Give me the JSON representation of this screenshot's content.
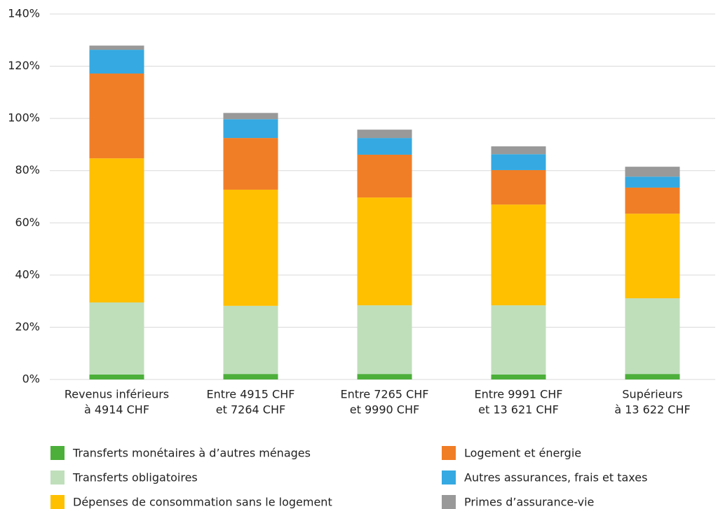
{
  "chart_data": {
    "type": "stacked_bar",
    "categories": [
      [
        "Revenus inférieurs",
        "à 4914 CHF"
      ],
      [
        "Entre 4915 CHF",
        "et 7264 CHF"
      ],
      [
        "Entre 7265 CHF",
        "et 9990 CHF"
      ],
      [
        "Entre 9991 CHF",
        "et 13 621 CHF"
      ],
      [
        "Supérieurs",
        "à 13 622 CHF"
      ]
    ],
    "series": [
      {
        "name": "Transferts monétaires à d’autres ménages",
        "color": "#4caf3a",
        "values": [
          1.9,
          2.1,
          2.1,
          1.9,
          2.1
        ]
      },
      {
        "name": "Transferts obligatoires",
        "color": "#bfdfbb",
        "values": [
          27.6,
          26.1,
          26.3,
          26.5,
          29.0
        ]
      },
      {
        "name": "Dépenses de consommation sans le logement",
        "color": "#ffc000",
        "values": [
          55.2,
          44.5,
          41.3,
          38.6,
          32.4
        ]
      },
      {
        "name": "Logement et énergie",
        "color": "#f07e26",
        "values": [
          32.5,
          19.8,
          16.4,
          13.2,
          10.0
        ]
      },
      {
        "name": "Autres assurances, frais et taxes",
        "color": "#35a9e1",
        "values": [
          9.1,
          7.2,
          6.4,
          6.1,
          4.2
        ]
      },
      {
        "name": "Primes d’assurance-vie",
        "color": "#999999",
        "values": [
          1.6,
          2.4,
          3.2,
          3.0,
          3.8
        ]
      }
    ],
    "ylim": [
      0,
      140
    ],
    "yticks": [
      {
        "value": 0,
        "label": "0%"
      },
      {
        "value": 20,
        "label": "20%"
      },
      {
        "value": 40,
        "label": "40%"
      },
      {
        "value": 60,
        "label": "60%"
      },
      {
        "value": 80,
        "label": "80%"
      },
      {
        "value": 100,
        "label": "100%"
      },
      {
        "value": 120,
        "label": "120%"
      },
      {
        "value": 140,
        "label": "140%"
      }
    ],
    "grid": true
  }
}
